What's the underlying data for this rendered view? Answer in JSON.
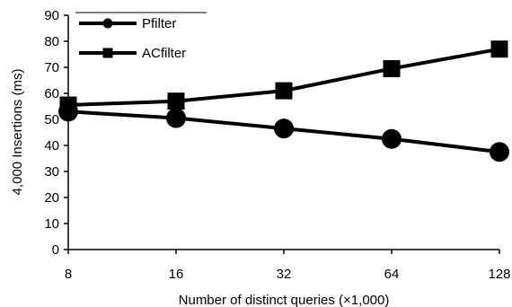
{
  "chart_data": {
    "type": "line",
    "xlabel": "Number of distinct queries (×1,000)",
    "ylabel": "4,000 Insertions (ms)",
    "categories": [
      "8",
      "16",
      "32",
      "64",
      "128"
    ],
    "ylim": [
      0,
      90
    ],
    "yticks": [
      "0",
      "10",
      "20",
      "30",
      "40",
      "50",
      "60",
      "70",
      "80",
      "90"
    ],
    "grid": false,
    "legend_position": "top-left",
    "series": [
      {
        "name": "Pfilter",
        "marker": "circle",
        "values": [
          53,
          50.5,
          46.5,
          42.5,
          37.5
        ]
      },
      {
        "name": "ACfilter",
        "marker": "square",
        "values": [
          55.5,
          57,
          61,
          69.5,
          77
        ]
      }
    ],
    "colors": {
      "line": "#000000",
      "marker": "#000000",
      "background": "#ffffff"
    }
  }
}
